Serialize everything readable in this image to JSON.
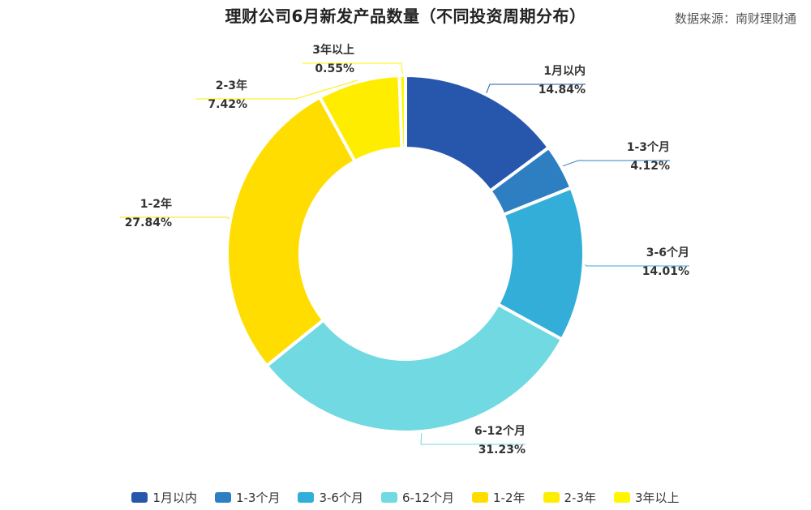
{
  "title": "理财公司6月新发产品数量（不同投资周期分布）",
  "source": "数据来源：南财理财通",
  "chart_data": {
    "type": "pie",
    "style": "donut",
    "start": "12 o'clock, clockwise",
    "legend_position": "bottom",
    "categories": [
      "1月以内",
      "1-3个月",
      "3-6个月",
      "6-12个月",
      "1-2年",
      "2-3年",
      "3年以上"
    ],
    "values": [
      14.84,
      4.12,
      14.01,
      31.23,
      27.84,
      7.42,
      0.55
    ],
    "labels": [
      "14.84%",
      "4.12%",
      "14.01%",
      "31.23%",
      "27.84%",
      "7.42%",
      "0.55%"
    ],
    "colors": [
      "#2756AD",
      "#2E7FC2",
      "#33AED9",
      "#70D9E2",
      "#FFDD00",
      "#FFED00",
      "#FFF600"
    ]
  }
}
